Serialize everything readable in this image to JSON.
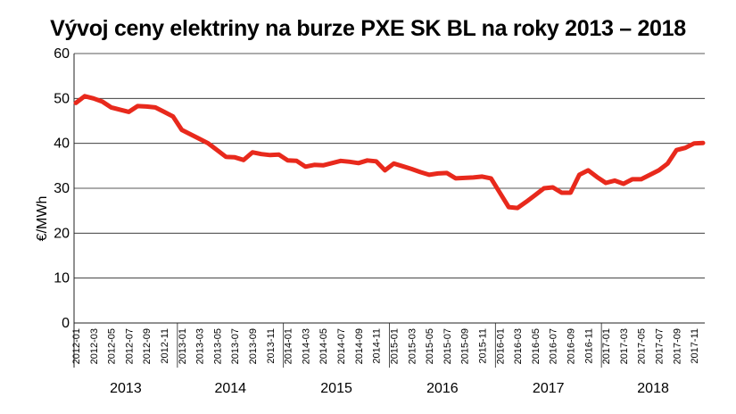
{
  "chart_data": {
    "type": "line",
    "title": "Vývoj ceny elektriny na burze PXE SK BL na roky 2013 – 2018",
    "ylabel": "€/MWh",
    "xlabel": "",
    "ylim": [
      0,
      60
    ],
    "yticks": [
      0,
      10,
      20,
      30,
      40,
      50,
      60
    ],
    "grid": "horizontal",
    "line_color": "#e8291c",
    "x": [
      "2012-01",
      "2012-02",
      "2012-03",
      "2012-04",
      "2012-05",
      "2012-06",
      "2012-07",
      "2012-08",
      "2012-09",
      "2012-10",
      "2012-11",
      "2012-12",
      "2013-01",
      "2013-02",
      "2013-03",
      "2013-04",
      "2013-05",
      "2013-06",
      "2013-07",
      "2013-08",
      "2013-09",
      "2013-10",
      "2013-11",
      "2013-12",
      "2014-01",
      "2014-02",
      "2014-03",
      "2014-04",
      "2014-05",
      "2014-06",
      "2014-07",
      "2014-08",
      "2014-09",
      "2014-10",
      "2014-11",
      "2014-12",
      "2015-01",
      "2015-02",
      "2015-03",
      "2015-04",
      "2015-05",
      "2015-06",
      "2015-07",
      "2015-08",
      "2015-09",
      "2015-10",
      "2015-11",
      "2015-12",
      "2016-01",
      "2016-02",
      "2016-03",
      "2016-04",
      "2016-05",
      "2016-06",
      "2016-07",
      "2016-08",
      "2016-09",
      "2016-10",
      "2016-11",
      "2016-12",
      "2017-01",
      "2017-02",
      "2017-03",
      "2017-04",
      "2017-05",
      "2017-06",
      "2017-07",
      "2017-08",
      "2017-09",
      "2017-10",
      "2017-11",
      "2017-12"
    ],
    "xtick_labels": [
      "2012-01",
      "2012-03",
      "2012-05",
      "2012-07",
      "2012-09",
      "2012-11",
      "2013-01",
      "2013-03",
      "2013-05",
      "2013-07",
      "2013-09",
      "2013-11",
      "2014-01",
      "2014-03",
      "2014-05",
      "2014-07",
      "2014-09",
      "2014-11",
      "2015-01",
      "2015-03",
      "2015-05",
      "2015-07",
      "2015-09",
      "2015-11",
      "2016-01",
      "2016-03",
      "2016-05",
      "2016-07",
      "2016-09",
      "2016-11",
      "2017-01",
      "2017-03",
      "2017-05",
      "2017-07",
      "2017-09",
      "2017-11"
    ],
    "year_groups": [
      "2013",
      "2014",
      "2015",
      "2016",
      "2017",
      "2018"
    ],
    "series": [
      {
        "values": [
          49.0,
          50.5,
          50.0,
          49.3,
          48.0,
          47.5,
          47.0,
          48.3,
          48.2,
          48.0,
          47.0,
          46.0,
          43.0,
          42.0,
          41.0,
          40.0,
          38.5,
          37.0,
          36.9,
          36.3,
          38.0,
          37.6,
          37.4,
          37.5,
          36.2,
          36.1,
          34.8,
          35.2,
          35.1,
          35.6,
          36.1,
          35.9,
          35.6,
          36.2,
          36.0,
          34.0,
          35.5,
          34.9,
          34.3,
          33.6,
          33.0,
          33.3,
          33.4,
          32.2,
          32.3,
          32.4,
          32.6,
          32.2,
          29.0,
          25.8,
          25.6,
          27.0,
          28.5,
          30.0,
          30.2,
          29.0,
          29.0,
          33.0,
          34.0,
          32.5,
          31.2,
          31.7,
          31.0,
          32.0,
          32.0,
          33.0,
          34.0,
          35.5,
          38.5,
          39.0,
          40.0,
          40.1
        ]
      }
    ]
  }
}
